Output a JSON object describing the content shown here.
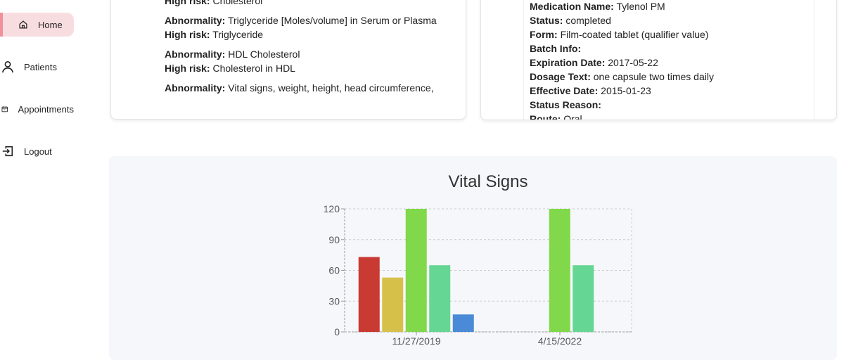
{
  "sidebar": {
    "items": [
      {
        "label": "Home",
        "icon": "home-icon",
        "active": true
      },
      {
        "label": "Patients",
        "icon": "user-icon"
      },
      {
        "label": "Appointments",
        "icon": "calendar-icon"
      },
      {
        "label": "Logout",
        "icon": "logout-icon"
      }
    ]
  },
  "risks": {
    "partial": {
      "label": "High risk:",
      "value": "Cholesterol"
    },
    "items": [
      {
        "abn_label": "Abnormality:",
        "abn": "Triglyceride [Moles/volume] in Serum or Plasma",
        "risk_label": "High risk:",
        "risk": "Triglyceride"
      },
      {
        "abn_label": "Abnormality:",
        "abn": "HDL Cholesterol",
        "risk_label": "High risk:",
        "risk": "Cholesterol in HDL"
      },
      {
        "abn_label": "Abnormality:",
        "abn": "Vital signs, weight, height, head circumference,"
      }
    ]
  },
  "medication": {
    "fields": [
      {
        "label": "Medication Name:",
        "value": "Tylenol PM"
      },
      {
        "label": "Status:",
        "value": "completed"
      },
      {
        "label": "Form:",
        "value": "Film-coated tablet (qualifier value)"
      },
      {
        "label": "Batch Info:",
        "value": ""
      },
      {
        "label": "Expiration Date:",
        "value": "2017-05-22"
      },
      {
        "label": "Dosage Text:",
        "value": "one capsule two times daily"
      },
      {
        "label": "Effective Date:",
        "value": "2015-01-23"
      },
      {
        "label": "Status Reason:",
        "value": ""
      },
      {
        "label": "Route:",
        "value": "Oral"
      }
    ]
  },
  "chart_data": {
    "type": "bar",
    "title": "Vital Signs",
    "categories": [
      "11/27/2019",
      "4/15/2022"
    ],
    "ylim": [
      0,
      120
    ],
    "yticks": [
      0,
      30,
      60,
      90,
      120
    ],
    "grid": true,
    "series": [
      {
        "color": "#c83a32",
        "values": [
          73,
          null
        ]
      },
      {
        "color": "#d6c04a",
        "values": [
          53,
          null
        ]
      },
      {
        "color": "#80d84a",
        "values": [
          120,
          120
        ]
      },
      {
        "color": "#66d694",
        "values": [
          65,
          65
        ]
      },
      {
        "color": "#4a8ad6",
        "values": [
          17,
          null
        ]
      }
    ]
  }
}
